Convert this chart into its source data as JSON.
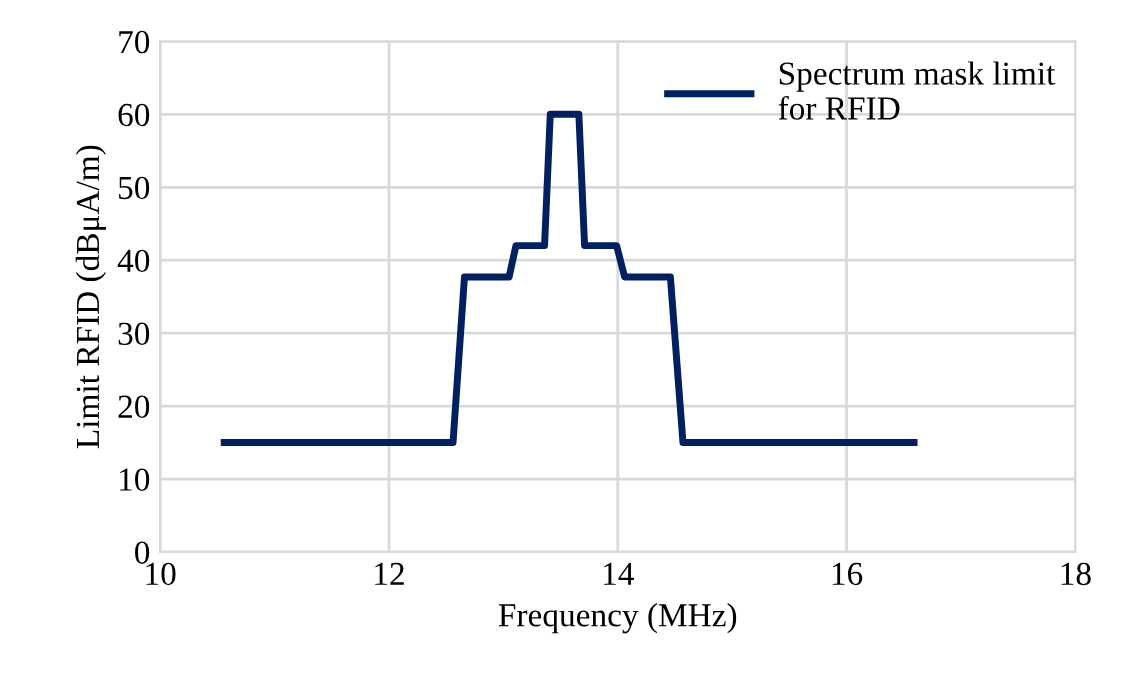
{
  "chart_data": {
    "type": "line",
    "xlabel": "Frequency (MHz)",
    "ylabel": "Limit RFID (dBμA/m)",
    "series": [
      {
        "name": "Spectrum mask limit\nfor RFID",
        "color": "#002060",
        "x": [
          10.56,
          12.56,
          12.66,
          13.05,
          13.11,
          13.36,
          13.41,
          13.66,
          13.71,
          13.99,
          14.06,
          14.46,
          14.57,
          16.59
        ],
        "values": [
          15,
          15,
          37.7,
          37.7,
          42,
          42,
          60,
          60,
          42,
          42,
          37.7,
          37.7,
          15,
          15
        ]
      }
    ],
    "xlim": [
      10,
      18
    ],
    "xticks": [
      10,
      12,
      14,
      16,
      18
    ],
    "ylim": [
      0,
      70
    ],
    "yticks": [
      0,
      10,
      20,
      30,
      40,
      50,
      60,
      70
    ],
    "grid": true,
    "legend": "top right",
    "marker": "none",
    "line_style": "solid"
  }
}
